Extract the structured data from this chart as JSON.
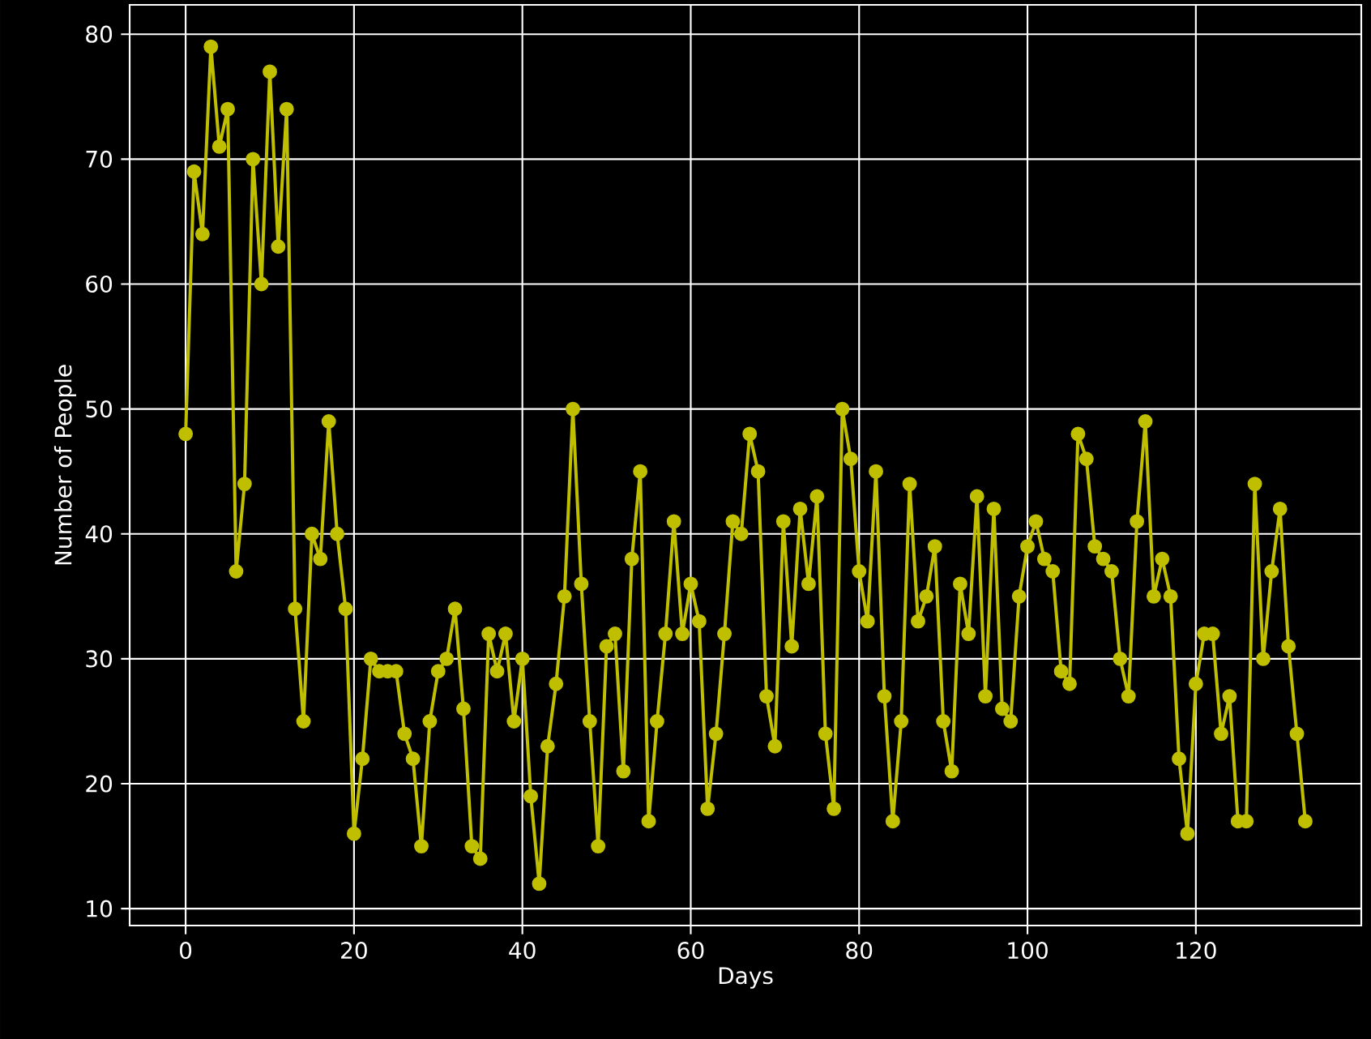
{
  "chart_data": {
    "type": "line",
    "xlabel": "Days",
    "ylabel": "Number of People",
    "x": [
      0,
      1,
      2,
      3,
      4,
      5,
      6,
      7,
      8,
      9,
      10,
      11,
      12,
      13,
      14,
      15,
      16,
      17,
      18,
      19,
      20,
      21,
      22,
      23,
      24,
      25,
      26,
      27,
      28,
      29,
      30,
      31,
      32,
      33,
      34,
      35,
      36,
      37,
      38,
      39,
      40,
      41,
      42,
      43,
      44,
      45,
      46,
      47,
      48,
      49,
      50,
      51,
      52,
      53,
      54,
      55,
      56,
      57,
      58,
      59,
      60,
      61,
      62,
      63,
      64,
      65,
      66,
      67,
      68,
      69,
      70,
      71,
      72,
      73,
      74,
      75,
      76,
      77,
      78,
      79,
      80,
      81,
      82,
      83,
      84,
      85,
      86,
      87,
      88,
      89,
      90,
      91,
      92,
      93,
      94,
      95,
      96,
      97,
      98,
      99,
      100,
      101,
      102,
      103,
      104,
      105,
      106,
      107,
      108,
      109,
      110,
      111,
      112,
      113,
      114,
      115,
      116,
      117,
      118,
      119,
      120,
      121,
      122,
      123,
      124,
      125,
      126,
      127,
      128,
      129,
      130,
      131,
      132,
      133
    ],
    "series": [
      {
        "color": "#bfbf00",
        "values": [
          48,
          69,
          64,
          79,
          71,
          74,
          37,
          44,
          70,
          60,
          77,
          63,
          74,
          34,
          25,
          40,
          38,
          49,
          40,
          34,
          16,
          22,
          30,
          29,
          29,
          29,
          24,
          22,
          15,
          25,
          29,
          30,
          34,
          26,
          15,
          14,
          32,
          29,
          32,
          25,
          30,
          19,
          12,
          23,
          28,
          35,
          50,
          36,
          25,
          15,
          31,
          32,
          21,
          38,
          45,
          17,
          25,
          32,
          41,
          32,
          36,
          33,
          18,
          24,
          32,
          41,
          40,
          48,
          45,
          27,
          23,
          41,
          31,
          42,
          36,
          43,
          24,
          18,
          50,
          46,
          37,
          33,
          45,
          27,
          17,
          25,
          44,
          33,
          35,
          39,
          25,
          21,
          36,
          32,
          43,
          27,
          42,
          26,
          25,
          35,
          39,
          41,
          38,
          37,
          29,
          28,
          48,
          46,
          39,
          38,
          37,
          30,
          27,
          41,
          49,
          35,
          38,
          35,
          22,
          16,
          28,
          32,
          32,
          24,
          27,
          17,
          17,
          44,
          30,
          37,
          42,
          31,
          24,
          17
        ]
      }
    ],
    "xlim": [
      -6.65,
      139.65
    ],
    "ylim": [
      8.65,
      82.35
    ],
    "xticks": [
      0,
      20,
      40,
      60,
      80,
      100,
      120
    ],
    "yticks": [
      10,
      20,
      30,
      40,
      50,
      60,
      70,
      80
    ],
    "grid": true,
    "marker": "circle",
    "line_style": "solid"
  }
}
